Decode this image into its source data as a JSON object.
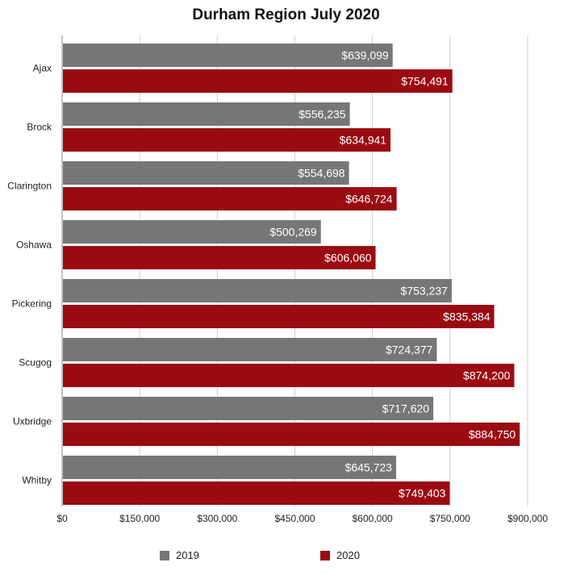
{
  "chart_data": {
    "type": "bar",
    "orientation": "horizontal",
    "title": "Durham Region July 2020",
    "xlabel": "",
    "ylabel": "",
    "categories": [
      "Ajax",
      "Brock",
      "Clarington",
      "Oshawa",
      "Pickering",
      "Scugog",
      "Uxbridge",
      "Whitby"
    ],
    "series": [
      {
        "name": "2019",
        "color": "#757775",
        "values": [
          639099,
          556235,
          554698,
          500269,
          753237,
          724377,
          717620,
          645723
        ],
        "labels": [
          "$639,099",
          "$556,235",
          "$554,698",
          "$500,269",
          "$753,237",
          "$724,377",
          "$717,620",
          "$645,723"
        ]
      },
      {
        "name": "2020",
        "color": "#9b0b12",
        "values": [
          754491,
          634941,
          646724,
          606060,
          835384,
          874200,
          884750,
          749403
        ],
        "labels": [
          "$754,491",
          "$634,941",
          "$646,724",
          "$606,060",
          "$835,384",
          "$874,200",
          "$884,750",
          "$749,403"
        ]
      }
    ],
    "xlim": [
      0,
      900000
    ],
    "xticks": [
      0,
      150000,
      300000,
      450000,
      600000,
      750000,
      900000
    ],
    "xtick_labels": [
      "$0",
      "$150,000",
      "$300,000",
      "$450,000",
      "$600,000",
      "$750,000",
      "$900,000"
    ],
    "grid": true,
    "legend_position": "bottom"
  }
}
